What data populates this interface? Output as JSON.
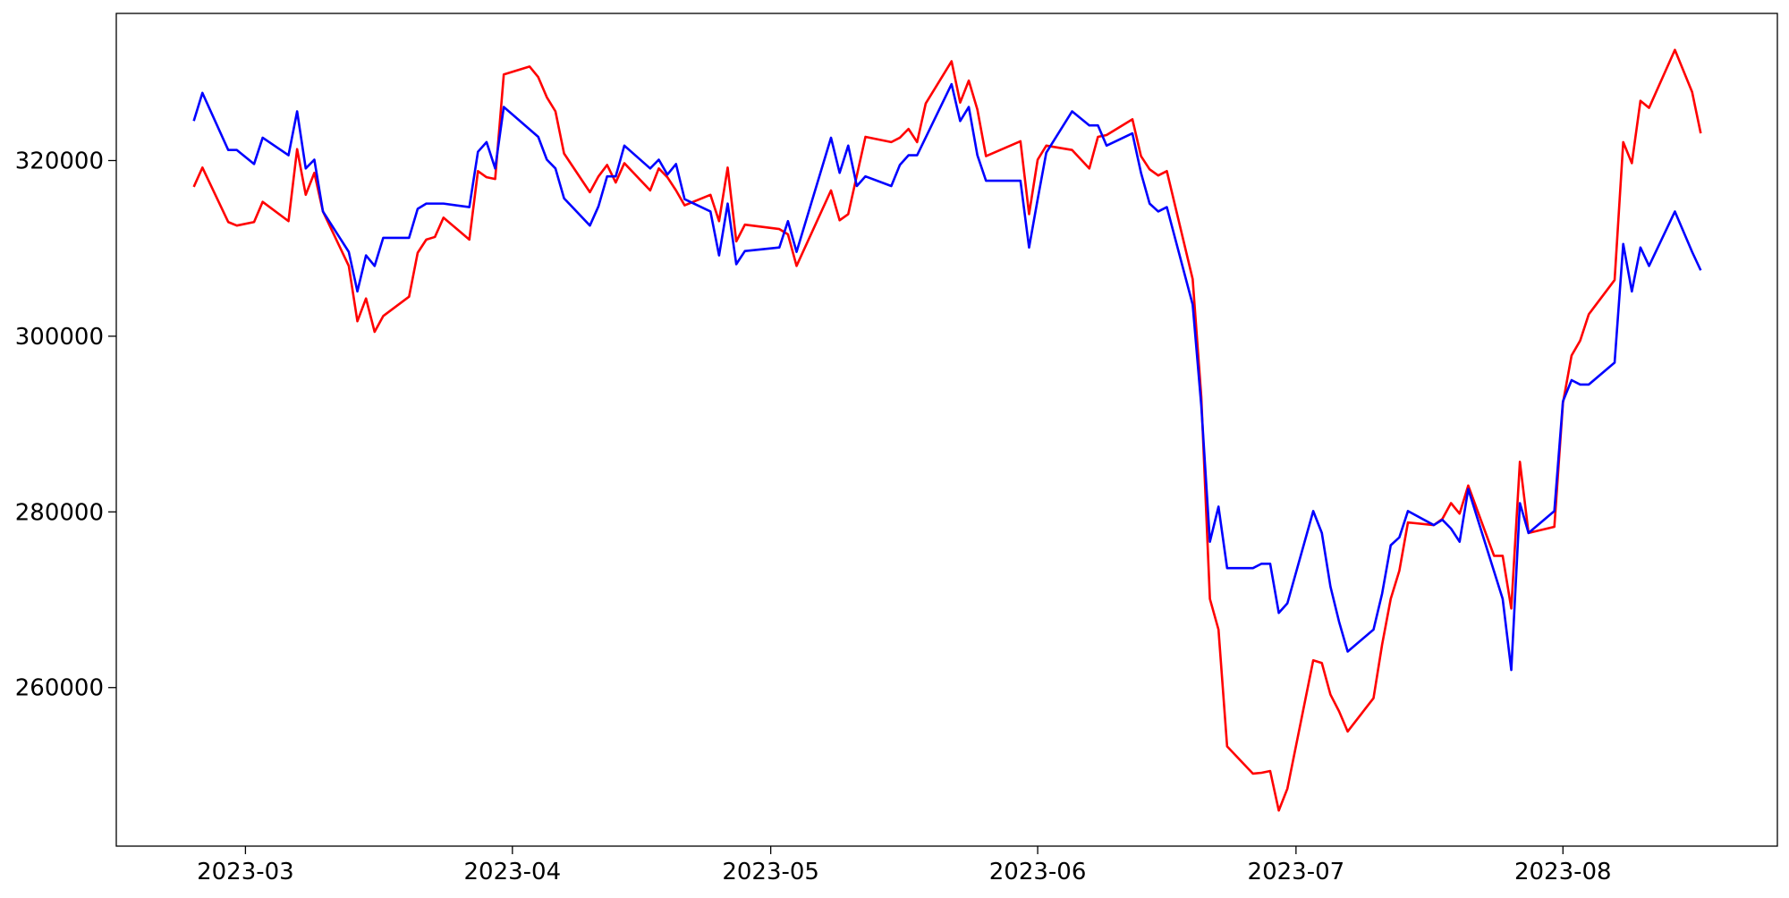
{
  "chart_data": {
    "type": "line",
    "xlim": [
      -15,
      177.9
    ],
    "xticks": [
      {
        "value": 0,
        "label": "2023-03"
      },
      {
        "value": 31,
        "label": "2023-04"
      },
      {
        "value": 61,
        "label": "2023-05"
      },
      {
        "value": 92,
        "label": "2023-06"
      },
      {
        "value": 122,
        "label": "2023-07"
      },
      {
        "value": 153,
        "label": "2023-08"
      }
    ],
    "ylim": [
      241950,
      336750
    ],
    "yticks": [
      260000,
      280000,
      300000,
      320000
    ],
    "grid": false,
    "series": [
      {
        "color": "#ff0000",
        "x": [
          -6,
          -5,
          -2,
          -1,
          1,
          2,
          5,
          6,
          7,
          8,
          9,
          12,
          13,
          14,
          15,
          16,
          19,
          20,
          21,
          22,
          23,
          26,
          27,
          28,
          29,
          30,
          33,
          34,
          35,
          36,
          37,
          40,
          41,
          42,
          43,
          44,
          47,
          48,
          49,
          50,
          51,
          54,
          55,
          56,
          57,
          58,
          62,
          63,
          64,
          68,
          69,
          70,
          72,
          75,
          76,
          77,
          78,
          79,
          82,
          83,
          84,
          85,
          86,
          90,
          91,
          92,
          93,
          96,
          98,
          99,
          100,
          103,
          104,
          105,
          106,
          107,
          110,
          111,
          112,
          113,
          114,
          117,
          118,
          119,
          120,
          121,
          124,
          125,
          126,
          127,
          128,
          131,
          132,
          133,
          134,
          135,
          138,
          139,
          140,
          141,
          142,
          145,
          146,
          147,
          148,
          149,
          152,
          153,
          154,
          155,
          156,
          159,
          160,
          161,
          162,
          163,
          166,
          168,
          169
        ],
        "values": [
          317000,
          319200,
          313000,
          312600,
          313000,
          315300,
          313100,
          321300,
          316100,
          318600,
          314200,
          308000,
          301700,
          304300,
          300500,
          302300,
          304500,
          309500,
          311000,
          311300,
          313500,
          311000,
          318800,
          318100,
          317900,
          329800,
          330700,
          329500,
          327200,
          325600,
          320800,
          316400,
          318200,
          319500,
          317500,
          319700,
          316600,
          319100,
          318100,
          316600,
          314900,
          316100,
          313100,
          319200,
          310800,
          312700,
          312200,
          311600,
          308000,
          316600,
          313200,
          313900,
          322700,
          322100,
          322600,
          323600,
          322100,
          326500,
          331300,
          326600,
          329100,
          325800,
          320500,
          322200,
          313900,
          320100,
          321700,
          321200,
          319100,
          322700,
          322900,
          324700,
          320500,
          319000,
          318300,
          318800,
          306500,
          293100,
          270100,
          266600,
          253300,
          250200,
          250300,
          250500,
          246000,
          248500,
          263100,
          262800,
          259200,
          257300,
          255000,
          258800,
          264900,
          270100,
          273300,
          278800,
          278500,
          279200,
          281000,
          279800,
          283000,
          275000,
          275000,
          269000,
          285700,
          277600,
          278300,
          292400,
          297800,
          299500,
          302500,
          306400,
          322100,
          319700,
          326800,
          326000,
          332600,
          327800,
          323100
        ]
      },
      {
        "color": "#0000ff",
        "x": [
          -6,
          -5,
          -2,
          -1,
          1,
          2,
          5,
          6,
          7,
          8,
          9,
          12,
          13,
          14,
          15,
          16,
          19,
          20,
          21,
          23,
          26,
          27,
          28,
          29,
          30,
          34,
          35,
          36,
          37,
          40,
          41,
          42,
          43,
          44,
          47,
          48,
          49,
          50,
          51,
          54,
          55,
          56,
          57,
          58,
          62,
          63,
          64,
          68,
          69,
          70,
          71,
          72,
          75,
          76,
          77,
          78,
          82,
          83,
          84,
          85,
          86,
          90,
          91,
          92,
          93,
          96,
          98,
          99,
          100,
          103,
          104,
          105,
          106,
          107,
          110,
          111,
          112,
          113,
          114,
          117,
          118,
          119,
          120,
          121,
          124,
          125,
          126,
          127,
          128,
          131,
          132,
          133,
          134,
          135,
          138,
          139,
          140,
          141,
          142,
          146,
          147,
          148,
          149,
          152,
          153,
          154,
          155,
          156,
          159,
          160,
          161,
          162,
          163,
          166,
          168,
          169
        ],
        "values": [
          324500,
          327700,
          321200,
          321200,
          319600,
          322600,
          320600,
          325600,
          319100,
          320100,
          314200,
          309600,
          305100,
          309200,
          308000,
          311200,
          311200,
          314500,
          315100,
          315100,
          314700,
          321000,
          322100,
          319100,
          326100,
          322700,
          320100,
          319100,
          315700,
          312600,
          314800,
          318200,
          318200,
          321700,
          319100,
          320100,
          318400,
          319600,
          315600,
          314200,
          309200,
          315100,
          308200,
          309700,
          310100,
          313100,
          309600,
          322600,
          318600,
          321700,
          317100,
          318200,
          317100,
          319500,
          320600,
          320600,
          328700,
          324500,
          326100,
          320600,
          317700,
          317700,
          310100,
          315600,
          320900,
          325600,
          324000,
          324000,
          321700,
          323100,
          318600,
          315100,
          314200,
          314700,
          303600,
          292100,
          276600,
          280600,
          273600,
          273600,
          274100,
          274100,
          268500,
          269600,
          280100,
          277600,
          271500,
          267500,
          264100,
          266600,
          270700,
          276200,
          277100,
          280100,
          278500,
          279100,
          278100,
          276600,
          282600,
          270100,
          262000,
          281000,
          277600,
          280100,
          292600,
          295000,
          294500,
          294500,
          297000,
          310500,
          305100,
          310100,
          308000,
          314200,
          309600,
          307500
        ]
      }
    ]
  }
}
